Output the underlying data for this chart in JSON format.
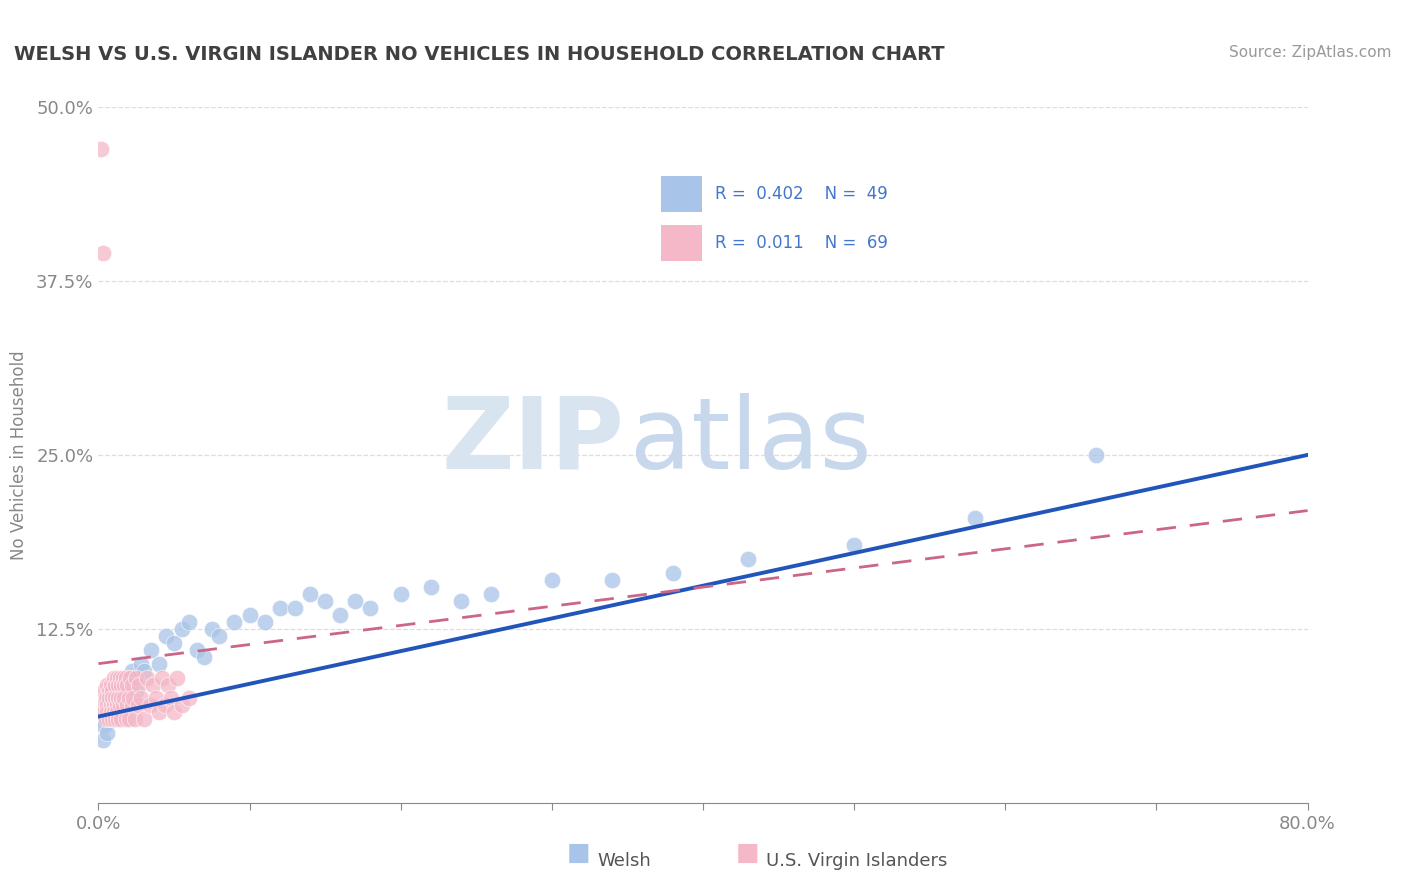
{
  "title": "WELSH VS U.S. VIRGIN ISLANDER NO VEHICLES IN HOUSEHOLD CORRELATION CHART",
  "source": "Source: ZipAtlas.com",
  "ylabel": "No Vehicles in Household",
  "xlim": [
    0.0,
    0.8
  ],
  "ylim": [
    0.0,
    0.5
  ],
  "welsh_R": 0.402,
  "welsh_N": 49,
  "virgin_R": 0.011,
  "virgin_N": 69,
  "welsh_color": "#a8c4e8",
  "virgin_color": "#f4b8c8",
  "welsh_line_color": "#2255bb",
  "virgin_line_color": "#cc6688",
  "title_color": "#404040",
  "source_color": "#999999",
  "axis_color": "#888888",
  "grid_color": "#dddddd",
  "legend_label_color": "#4477cc",
  "background_color": "#ffffff",
  "welsh_x": [
    0.002,
    0.003,
    0.004,
    0.005,
    0.006,
    0.007,
    0.008,
    0.009,
    0.01,
    0.012,
    0.014,
    0.016,
    0.018,
    0.02,
    0.022,
    0.025,
    0.028,
    0.03,
    0.035,
    0.04,
    0.045,
    0.05,
    0.055,
    0.06,
    0.065,
    0.07,
    0.075,
    0.08,
    0.09,
    0.1,
    0.11,
    0.12,
    0.13,
    0.14,
    0.15,
    0.16,
    0.17,
    0.18,
    0.2,
    0.22,
    0.24,
    0.26,
    0.3,
    0.34,
    0.38,
    0.43,
    0.5,
    0.58,
    0.66
  ],
  "welsh_y": [
    0.06,
    0.045,
    0.055,
    0.07,
    0.05,
    0.065,
    0.08,
    0.06,
    0.07,
    0.075,
    0.08,
    0.065,
    0.09,
    0.085,
    0.095,
    0.08,
    0.1,
    0.095,
    0.11,
    0.1,
    0.12,
    0.115,
    0.125,
    0.13,
    0.11,
    0.105,
    0.125,
    0.12,
    0.13,
    0.135,
    0.13,
    0.14,
    0.14,
    0.15,
    0.145,
    0.135,
    0.145,
    0.14,
    0.15,
    0.155,
    0.145,
    0.15,
    0.16,
    0.16,
    0.165,
    0.175,
    0.185,
    0.205,
    0.25
  ],
  "virgin_x": [
    0.002,
    0.003,
    0.003,
    0.004,
    0.004,
    0.005,
    0.005,
    0.006,
    0.006,
    0.006,
    0.007,
    0.007,
    0.007,
    0.008,
    0.008,
    0.008,
    0.009,
    0.009,
    0.009,
    0.01,
    0.01,
    0.01,
    0.011,
    0.011,
    0.011,
    0.012,
    0.012,
    0.012,
    0.013,
    0.013,
    0.013,
    0.014,
    0.014,
    0.015,
    0.015,
    0.015,
    0.016,
    0.016,
    0.017,
    0.017,
    0.018,
    0.018,
    0.019,
    0.019,
    0.02,
    0.02,
    0.021,
    0.022,
    0.022,
    0.023,
    0.024,
    0.025,
    0.026,
    0.027,
    0.028,
    0.03,
    0.032,
    0.034,
    0.036,
    0.038,
    0.04,
    0.042,
    0.044,
    0.046,
    0.048,
    0.05,
    0.052,
    0.055,
    0.06
  ],
  "virgin_y": [
    0.47,
    0.395,
    0.07,
    0.08,
    0.065,
    0.075,
    0.06,
    0.085,
    0.07,
    0.065,
    0.08,
    0.075,
    0.06,
    0.085,
    0.07,
    0.065,
    0.08,
    0.075,
    0.06,
    0.09,
    0.07,
    0.065,
    0.085,
    0.075,
    0.06,
    0.09,
    0.07,
    0.065,
    0.085,
    0.075,
    0.06,
    0.09,
    0.07,
    0.085,
    0.075,
    0.06,
    0.09,
    0.07,
    0.085,
    0.075,
    0.06,
    0.09,
    0.07,
    0.085,
    0.075,
    0.06,
    0.09,
    0.07,
    0.085,
    0.075,
    0.06,
    0.09,
    0.07,
    0.085,
    0.075,
    0.06,
    0.09,
    0.07,
    0.085,
    0.075,
    0.065,
    0.09,
    0.07,
    0.085,
    0.075,
    0.065,
    0.09,
    0.07,
    0.075
  ],
  "watermark_zip_color": "#d8e4f0",
  "watermark_atlas_color": "#c8d8ec"
}
